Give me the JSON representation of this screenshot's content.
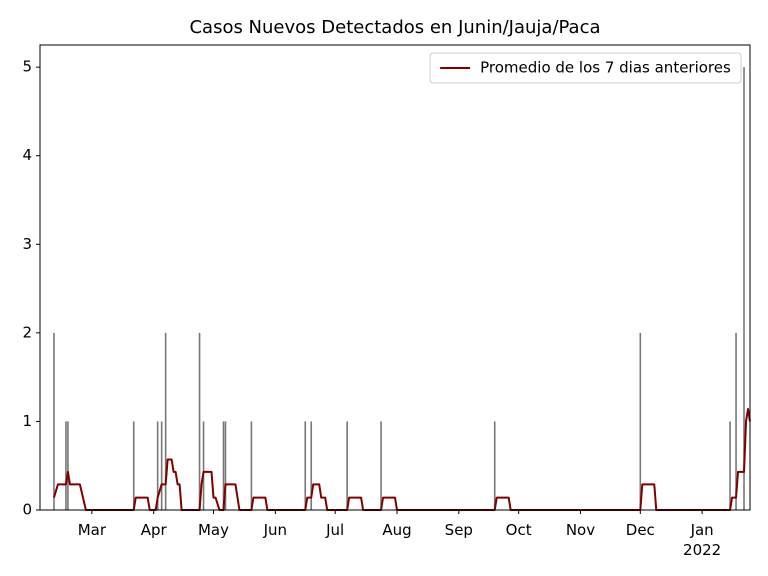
{
  "chart_data": {
    "type": "bar",
    "title": "Casos Nuevos Detectados en Junin/Jauja/Paca",
    "xlim": [
      33,
      389
    ],
    "ylim": [
      0,
      5.25
    ],
    "xticks": [
      {
        "value": 59,
        "label": "Mar"
      },
      {
        "value": 90,
        "label": "Apr"
      },
      {
        "value": 120,
        "label": "May"
      },
      {
        "value": 151,
        "label": "Jun"
      },
      {
        "value": 181,
        "label": "Jul"
      },
      {
        "value": 212,
        "label": "Aug"
      },
      {
        "value": 243,
        "label": "Sep"
      },
      {
        "value": 273,
        "label": "Oct"
      },
      {
        "value": 304,
        "label": "Nov"
      },
      {
        "value": 334,
        "label": "Dec"
      },
      {
        "value": 365,
        "label": "Jan\n2022"
      }
    ],
    "yticks": [
      0,
      1,
      2,
      3,
      4,
      5
    ],
    "legend": "upper right",
    "series": [
      {
        "type": "bar",
        "color": "#777777",
        "x": [
          40,
          46,
          47,
          80,
          92,
          94,
          96,
          113,
          115,
          125,
          126,
          139,
          166,
          169,
          187,
          204,
          261,
          334,
          379,
          382,
          386
        ],
        "values": [
          2,
          1,
          1,
          1,
          1,
          1,
          2,
          2,
          1,
          1,
          1,
          1,
          1,
          1,
          1,
          1,
          1,
          2,
          1,
          2,
          5
        ]
      },
      {
        "type": "line",
        "name": "Promedio de los 7 dias anteriores",
        "color": "#800000",
        "x": [
          40,
          42,
          46,
          47,
          48,
          53,
          56,
          80,
          81,
          87,
          88,
          91,
          92,
          94,
          96,
          97,
          99,
          100,
          101,
          102,
          103,
          104,
          113,
          114,
          115,
          119,
          120,
          121,
          123,
          125,
          126,
          131,
          133,
          139,
          140,
          146,
          147,
          166,
          167,
          169,
          170,
          173,
          174,
          176,
          177,
          187,
          188,
          194,
          195,
          204,
          205,
          211,
          212,
          261,
          262,
          268,
          269,
          334,
          335,
          341,
          342,
          379,
          380,
          382,
          383,
          386,
          387,
          388,
          389
        ],
        "values": [
          0.14,
          0.29,
          0.29,
          0.43,
          0.29,
          0.29,
          0,
          0,
          0.14,
          0.14,
          0,
          0,
          0.14,
          0.29,
          0.29,
          0.57,
          0.57,
          0.43,
          0.43,
          0.29,
          0.29,
          0,
          0,
          0.29,
          0.43,
          0.43,
          0.14,
          0.14,
          0,
          0,
          0.29,
          0.29,
          0,
          0,
          0.14,
          0.14,
          0,
          0,
          0.14,
          0.14,
          0.29,
          0.29,
          0.14,
          0.14,
          0,
          0,
          0.14,
          0.14,
          0,
          0,
          0.14,
          0.14,
          0,
          0,
          0.14,
          0.14,
          0,
          0,
          0.29,
          0.29,
          0,
          0,
          0.14,
          0.14,
          0.43,
          0.43,
          1,
          1.14,
          1
        ]
      }
    ]
  }
}
